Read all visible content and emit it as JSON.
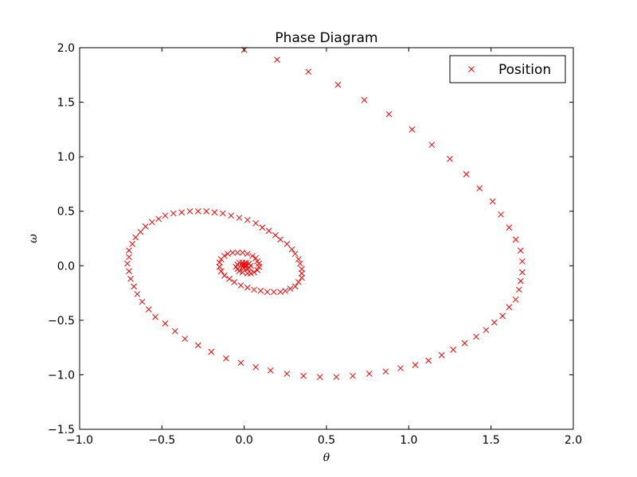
{
  "chart_data": {
    "type": "scatter",
    "title": "Phase Diagram",
    "xlabel": "θ",
    "ylabel": "ω",
    "xlim": [
      -1.0,
      2.0
    ],
    "ylim": [
      -1.5,
      2.0
    ],
    "xticks": [
      -1.0,
      -0.5,
      0.0,
      0.5,
      1.0,
      1.5,
      2.0
    ],
    "yticks": [
      -1.5,
      -1.0,
      -0.5,
      0.0,
      0.5,
      1.0,
      1.5,
      2.0
    ],
    "xtick_labels": [
      "−1.0",
      "−0.5",
      "0.0",
      "0.5",
      "1.0",
      "1.5",
      "2.0"
    ],
    "ytick_labels": [
      "−1.5",
      "−1.0",
      "−0.5",
      "0.0",
      "0.5",
      "1.0",
      "1.5",
      "2.0"
    ],
    "grid": false,
    "legend": {
      "position": "top-right",
      "entries": [
        "Position"
      ]
    },
    "series": [
      {
        "name": "Position",
        "marker": "x",
        "color": "#ff0000",
        "points": [
          [
            0.0,
            1.98
          ],
          [
            0.2,
            1.89
          ],
          [
            0.39,
            1.78
          ],
          [
            0.57,
            1.66
          ],
          [
            0.73,
            1.52
          ],
          [
            0.88,
            1.39
          ],
          [
            1.02,
            1.25
          ],
          [
            1.14,
            1.11
          ],
          [
            1.25,
            0.98
          ],
          [
            1.35,
            0.84
          ],
          [
            1.43,
            0.71
          ],
          [
            1.51,
            0.59
          ],
          [
            1.56,
            0.47
          ],
          [
            1.61,
            0.35
          ],
          [
            1.65,
            0.24
          ],
          [
            1.68,
            0.14
          ],
          [
            1.69,
            0.04
          ],
          [
            1.69,
            -0.06
          ],
          [
            1.68,
            -0.14
          ],
          [
            1.67,
            -0.22
          ],
          [
            1.65,
            -0.31
          ],
          [
            1.61,
            -0.38
          ],
          [
            1.57,
            -0.46
          ],
          [
            1.52,
            -0.52
          ],
          [
            1.47,
            -0.59
          ],
          [
            1.41,
            -0.65
          ],
          [
            1.34,
            -0.71
          ],
          [
            1.27,
            -0.77
          ],
          [
            1.2,
            -0.82
          ],
          [
            1.12,
            -0.87
          ],
          [
            1.04,
            -0.91
          ],
          [
            0.95,
            -0.94
          ],
          [
            0.86,
            -0.97
          ],
          [
            0.76,
            -0.99
          ],
          [
            0.66,
            -1.01
          ],
          [
            0.56,
            -1.02
          ],
          [
            0.46,
            -1.02
          ],
          [
            0.36,
            -1.01
          ],
          [
            0.26,
            -0.99
          ],
          [
            0.16,
            -0.96
          ],
          [
            0.07,
            -0.93
          ],
          [
            -0.02,
            -0.89
          ],
          [
            -0.11,
            -0.85
          ],
          [
            -0.2,
            -0.79
          ],
          [
            -0.28,
            -0.73
          ],
          [
            -0.36,
            -0.67
          ],
          [
            -0.42,
            -0.6
          ],
          [
            -0.48,
            -0.53
          ],
          [
            -0.54,
            -0.47
          ],
          [
            -0.58,
            -0.4
          ],
          [
            -0.62,
            -0.33
          ],
          [
            -0.65,
            -0.26
          ],
          [
            -0.67,
            -0.19
          ],
          [
            -0.69,
            -0.12
          ],
          [
            -0.7,
            -0.05
          ],
          [
            -0.71,
            0.02
          ],
          [
            -0.7,
            0.08
          ],
          [
            -0.7,
            0.14
          ],
          [
            -0.68,
            0.2
          ],
          [
            -0.66,
            0.26
          ],
          [
            -0.63,
            0.31
          ],
          [
            -0.6,
            0.36
          ],
          [
            -0.56,
            0.4
          ],
          [
            -0.52,
            0.43
          ],
          [
            -0.48,
            0.46
          ],
          [
            -0.43,
            0.48
          ],
          [
            -0.38,
            0.49
          ],
          [
            -0.33,
            0.5
          ],
          [
            -0.28,
            0.5
          ],
          [
            -0.23,
            0.5
          ],
          [
            -0.18,
            0.49
          ],
          [
            -0.13,
            0.48
          ],
          [
            -0.08,
            0.46
          ],
          [
            -0.03,
            0.44
          ],
          [
            0.02,
            0.42
          ],
          [
            0.07,
            0.39
          ],
          [
            0.11,
            0.35
          ],
          [
            0.15,
            0.32
          ],
          [
            0.19,
            0.28
          ],
          [
            0.22,
            0.24
          ],
          [
            0.26,
            0.2
          ],
          [
            0.29,
            0.15
          ],
          [
            0.31,
            0.11
          ],
          [
            0.33,
            0.06
          ],
          [
            0.34,
            0.02
          ],
          [
            0.35,
            -0.03
          ],
          [
            0.35,
            -0.07
          ],
          [
            0.35,
            -0.11
          ],
          [
            0.33,
            -0.15
          ],
          [
            0.31,
            -0.19
          ],
          [
            0.28,
            -0.21
          ],
          [
            0.25,
            -0.23
          ],
          [
            0.22,
            -0.24
          ],
          [
            0.18,
            -0.24
          ],
          [
            0.14,
            -0.24
          ],
          [
            0.1,
            -0.23
          ],
          [
            0.06,
            -0.22
          ],
          [
            0.02,
            -0.2
          ],
          [
            -0.02,
            -0.18
          ],
          [
            -0.06,
            -0.15
          ],
          [
            -0.09,
            -0.12
          ],
          [
            -0.12,
            -0.09
          ],
          [
            -0.14,
            -0.05
          ],
          [
            -0.15,
            -0.01
          ],
          [
            -0.15,
            0.03
          ],
          [
            -0.14,
            0.06
          ],
          [
            -0.12,
            0.09
          ],
          [
            -0.1,
            0.11
          ],
          [
            -0.07,
            0.12
          ],
          [
            -0.04,
            0.12
          ],
          [
            -0.01,
            0.12
          ],
          [
            0.02,
            0.11
          ],
          [
            0.05,
            0.09
          ],
          [
            0.07,
            0.07
          ],
          [
            0.08,
            0.04
          ],
          [
            0.09,
            0.02
          ],
          [
            0.09,
            -0.01
          ],
          [
            0.08,
            -0.04
          ],
          [
            0.06,
            -0.06
          ],
          [
            0.04,
            -0.07
          ],
          [
            0.02,
            -0.07
          ],
          [
            -0.01,
            -0.06
          ],
          [
            -0.03,
            -0.05
          ],
          [
            -0.04,
            -0.03
          ],
          [
            -0.05,
            -0.01
          ],
          [
            -0.04,
            0.01
          ],
          [
            -0.03,
            0.03
          ],
          [
            -0.01,
            0.03
          ],
          [
            0.01,
            0.03
          ],
          [
            0.03,
            0.02
          ],
          [
            0.04,
            0.0
          ],
          [
            0.03,
            -0.02
          ],
          [
            0.02,
            -0.03
          ],
          [
            0.0,
            -0.02
          ],
          [
            -0.01,
            -0.01
          ],
          [
            -0.01,
            0.01
          ],
          [
            0.0,
            0.01
          ],
          [
            0.01,
            0.01
          ],
          [
            0.01,
            0.0
          ]
        ]
      }
    ]
  }
}
